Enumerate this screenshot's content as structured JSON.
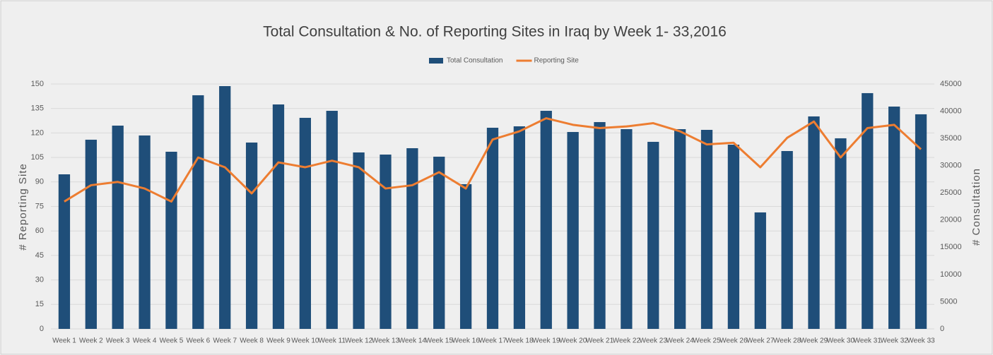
{
  "chart_data": {
    "type": "bar-line",
    "title": "Total Consultation & No. of Reporting Sites in Iraq by Week 1- 33,2016",
    "y_label": "# Reporting Site",
    "y2_label": "# Consultation",
    "categories": [
      "Week 1",
      "Week 2",
      "Week 3",
      "Week 4",
      "Week 5",
      "Week 6",
      "Week 7",
      "Week 8",
      "Week 9",
      "Week 10",
      "Week 11",
      "Week 12",
      "Week 13",
      "Week 14",
      "Week 15",
      "Week 16",
      "Week 17",
      "Week 18",
      "Week 19",
      "Week 20",
      "Week 21",
      "Week 22",
      "Week 23",
      "Week 24",
      "Week 25",
      "Week 26",
      "Week 27",
      "Week 28",
      "Week 29",
      "Week 30",
      "Week 31",
      "Week 32",
      "Week 33"
    ],
    "series": [
      {
        "name": "Total Consultation",
        "type": "bar",
        "axis": "y2",
        "color": "#1f4e79",
        "values": [
          28400,
          34760,
          37350,
          35540,
          32550,
          42930,
          44610,
          34240,
          41240,
          38780,
          40070,
          32420,
          32030,
          33200,
          31640,
          26590,
          36960,
          37220,
          40070,
          36180,
          38000,
          36700,
          34370,
          36700,
          36570,
          33850,
          21400,
          32680,
          39040,
          35020,
          43320,
          40850,
          39430
        ]
      },
      {
        "name": "Reporting Site",
        "type": "line",
        "axis": "y",
        "color": "#ed7d31",
        "values": [
          78,
          88,
          90,
          86,
          78,
          105,
          99,
          83,
          102,
          99,
          103,
          99,
          86,
          88,
          96,
          86,
          116,
          121,
          129,
          125,
          123,
          124,
          126,
          121,
          113,
          114,
          99,
          117,
          127,
          105,
          123,
          125,
          110
        ]
      }
    ],
    "ylim": [
      0,
      150
    ],
    "yticks": [
      0,
      15,
      30,
      45,
      60,
      75,
      90,
      105,
      120,
      135,
      150
    ],
    "y2lim": [
      0,
      45000
    ],
    "y2ticks": [
      0,
      5000,
      10000,
      15000,
      20000,
      25000,
      30000,
      35000,
      40000,
      45000
    ],
    "grid": true,
    "legend": "top"
  }
}
